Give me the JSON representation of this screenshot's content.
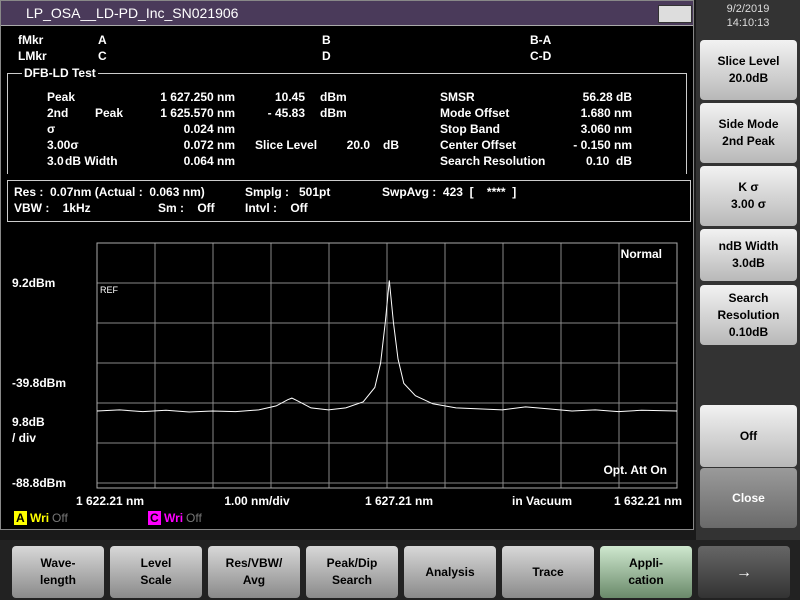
{
  "window_title": "LP_OSA__LD-PD_Inc_SN021906",
  "date": "9/2/2019",
  "time": "14:10:13",
  "markers": [
    [
      "fMkr",
      "A",
      "B",
      "B-A"
    ],
    [
      "LMkr",
      "C",
      "D",
      "C-D"
    ]
  ],
  "test_name": "DFB-LD Test",
  "results": [
    [
      "Peak",
      "1 627.250 nm",
      "10.45",
      "dBm",
      "SMSR",
      "56.28 dB"
    ],
    [
      "2nd",
      "Peak",
      "1 625.570 nm",
      "- 45.83",
      "dBm",
      "Mode Offset",
      "1.680 nm"
    ],
    [
      "σ",
      "0.024 nm",
      "Stop Band",
      "3.060 nm"
    ],
    [
      "3.00σ",
      "0.072 nm",
      "Slice Level",
      "20.0",
      "dB",
      "Center Offset",
      "- 0.150 nm"
    ],
    [
      "3.0",
      "dB Width",
      "0.064 nm",
      "Search Resolution",
      "0.10  dB"
    ]
  ],
  "conditions": [
    [
      "Res :  0.07nm (Actual :  0.063 nm)",
      "Smplg :   501pt",
      "SwpAvg :  423  [    ****  ]"
    ],
    [
      "VBW :    1kHz",
      "Sm :    Off",
      "Intvl :    Off"
    ]
  ],
  "plot": {
    "mode": "Normal",
    "ref_marker": "REF",
    "att_status": "Opt. Att On",
    "y_labels": [
      "9.2dBm",
      "-39.8dBm",
      "9.8dB",
      "/ div",
      "-88.8dBm"
    ],
    "x_labels": [
      "1 622.21 nm",
      "1.00 nm/div",
      "1 627.21 nm",
      "in Vacuum",
      "1 632.21 nm"
    ],
    "xlim": [
      1622.21,
      1632.21
    ],
    "ylim": [
      -88.8,
      28.8
    ],
    "trace": {
      "x": [
        1622.21,
        1622.6,
        1623.0,
        1623.4,
        1623.8,
        1624.2,
        1624.6,
        1625.0,
        1625.3,
        1625.5,
        1625.57,
        1625.7,
        1625.9,
        1626.2,
        1626.5,
        1626.8,
        1627.0,
        1627.1,
        1627.18,
        1627.25,
        1627.32,
        1627.4,
        1627.5,
        1627.7,
        1628.0,
        1628.4,
        1628.8,
        1629.2,
        1629.6,
        1630.0,
        1630.4,
        1630.8,
        1631.2,
        1631.6,
        1632.21
      ],
      "y": [
        -53.5,
        -53,
        -53.8,
        -53.2,
        -54,
        -53.5,
        -53.8,
        -53,
        -51,
        -48,
        -47.2,
        -49,
        -52,
        -53,
        -52,
        -49,
        -42,
        -30,
        -10,
        10.45,
        -10,
        -28,
        -40,
        -46,
        -50,
        -52,
        -52.5,
        -53,
        -51.5,
        -52.5,
        -53.5,
        -53,
        -53.8,
        -53.2,
        -53.5
      ]
    }
  },
  "trace_status": [
    [
      "A",
      "Wri",
      "Off"
    ],
    [
      "C",
      "Wri",
      "Off"
    ]
  ],
  "softkeys": [
    [
      "Slice Level",
      "20.0dB"
    ],
    [
      "Side Mode",
      "2nd Peak"
    ],
    [
      "K σ",
      "3.00 σ"
    ],
    [
      "ndB Width",
      "3.0dB"
    ],
    [
      "Search",
      "Resolution",
      "0.10dB"
    ],
    [
      "Off"
    ],
    [
      "Close"
    ]
  ],
  "menu": [
    [
      "Wave-",
      "length"
    ],
    [
      "Level",
      "Scale"
    ],
    [
      "Res/VBW/",
      "Avg"
    ],
    [
      "Peak/Dip",
      "Search"
    ],
    [
      "Analysis"
    ],
    [
      "Trace"
    ],
    [
      "Appli-",
      "cation"
    ],
    [
      "→"
    ]
  ]
}
